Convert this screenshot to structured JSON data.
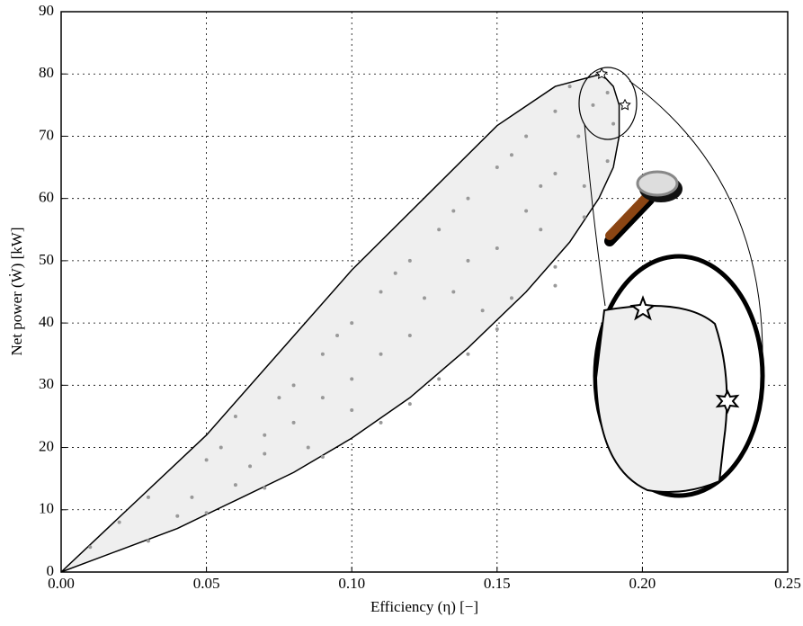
{
  "chart_data": {
    "type": "scatter",
    "xlabel": "Efficiency  (η) [−]",
    "ylabel": "Net power (Ẇ) [kW]",
    "xlim": [
      0,
      0.25
    ],
    "ylim": [
      0,
      90
    ],
    "xticks": [
      {
        "value": 0,
        "label": "0.00"
      },
      {
        "value": 0.05,
        "label": "0.05"
      },
      {
        "value": 0.1,
        "label": "0.10"
      },
      {
        "value": 0.15,
        "label": "0.15"
      },
      {
        "value": 0.2,
        "label": "0.20"
      },
      {
        "value": 0.25,
        "label": "0.25"
      }
    ],
    "yticks": [
      0,
      10,
      20,
      30,
      40,
      50,
      60,
      70,
      80,
      90
    ],
    "grid": true,
    "series": [
      {
        "marker": "envelope",
        "color": "#000000",
        "x": [
          0,
          0.05,
          0.1,
          0.15,
          0.17,
          0.186,
          0.19,
          0.192,
          0.192,
          0.19,
          0.185,
          0.175,
          0.16,
          0.14,
          0.12,
          0.1,
          0.08,
          0.06,
          0.04,
          0.02,
          0
        ],
        "values": [
          0,
          22,
          48.5,
          71.7,
          78,
          80,
          78,
          75,
          70,
          65,
          60,
          53,
          45,
          36,
          28,
          21.5,
          16,
          11.5,
          7,
          3.5,
          0
        ]
      },
      {
        "marker": "dot",
        "color": "#999999",
        "x": [
          0.03,
          0.05,
          0.07,
          0.09,
          0.11,
          0.13,
          0.15,
          0.17,
          0.18,
          0.188,
          0.19,
          0.188,
          0.04,
          0.065,
          0.08,
          0.1,
          0.12,
          0.135,
          0.15,
          0.16,
          0.17,
          0.178,
          0.01,
          0.02,
          0.03,
          0.05,
          0.06,
          0.07,
          0.08,
          0.09,
          0.1,
          0.11,
          0.12,
          0.13,
          0.14,
          0.15,
          0.16,
          0.17,
          0.175,
          0.12,
          0.14,
          0.1,
          0.085,
          0.155,
          0.165,
          0.18,
          0.183,
          0.14,
          0.125,
          0.11,
          0.09,
          0.07,
          0.06,
          0.045,
          0.055,
          0.075,
          0.095,
          0.115,
          0.135,
          0.155,
          0.145,
          0.165,
          0.17
        ],
        "values": [
          5,
          9.5,
          13.5,
          18.5,
          24,
          31,
          39,
          49,
          57,
          66,
          72,
          77,
          9,
          17,
          24,
          31,
          38,
          45,
          52,
          58,
          64,
          70,
          4,
          8,
          12,
          18,
          25,
          22,
          30,
          35,
          40,
          45,
          50,
          55,
          60,
          65,
          70,
          74,
          78,
          27,
          35,
          26,
          20,
          44,
          55,
          62,
          75,
          50,
          44,
          35,
          28,
          19,
          14,
          12,
          20,
          28,
          38,
          48,
          58,
          67,
          42,
          62,
          46
        ]
      },
      {
        "marker": "star",
        "color": "#ffffff",
        "x": [
          0.186,
          0.194
        ],
        "values": [
          80,
          75
        ]
      }
    ]
  }
}
